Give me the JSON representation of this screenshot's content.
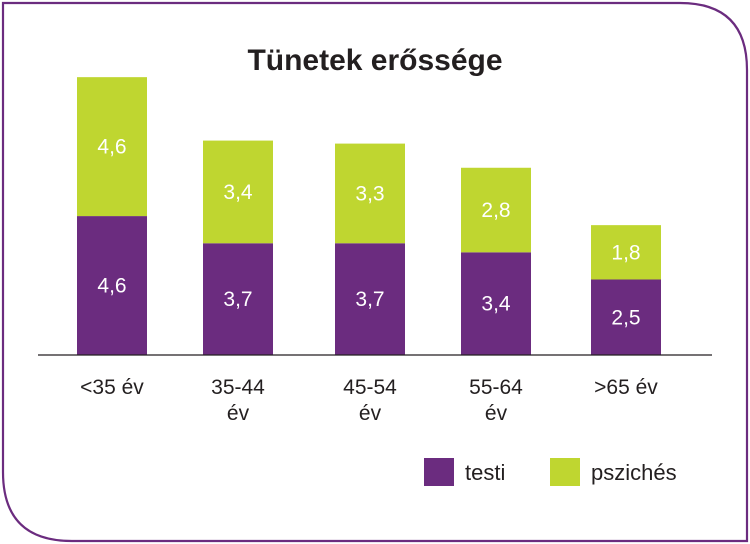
{
  "chart_data": {
    "type": "bar",
    "stacked": true,
    "title": "Tünetek erőssége",
    "categories": [
      [
        "<35 év"
      ],
      [
        "35-44",
        "év"
      ],
      [
        "45-54",
        "év"
      ],
      [
        "55-64",
        "év"
      ],
      [
        ">65 év"
      ]
    ],
    "series": [
      {
        "name": "testi",
        "color": "#6b2c7f",
        "values": [
          4.6,
          3.7,
          3.7,
          3.4,
          2.5
        ],
        "labels": [
          "4,6",
          "3,7",
          "3,7",
          "3,4",
          "2,5"
        ]
      },
      {
        "name": "pszichés",
        "color": "#bfd630",
        "values": [
          4.6,
          3.4,
          3.3,
          2.8,
          1.8
        ],
        "labels": [
          "4,6",
          "3,4",
          "3,3",
          "2,8",
          "1,8"
        ]
      }
    ],
    "ylim": [
      0,
      10
    ],
    "grid": false,
    "legend_position": "bottom-right",
    "frame_color": "#6b2c7f"
  }
}
